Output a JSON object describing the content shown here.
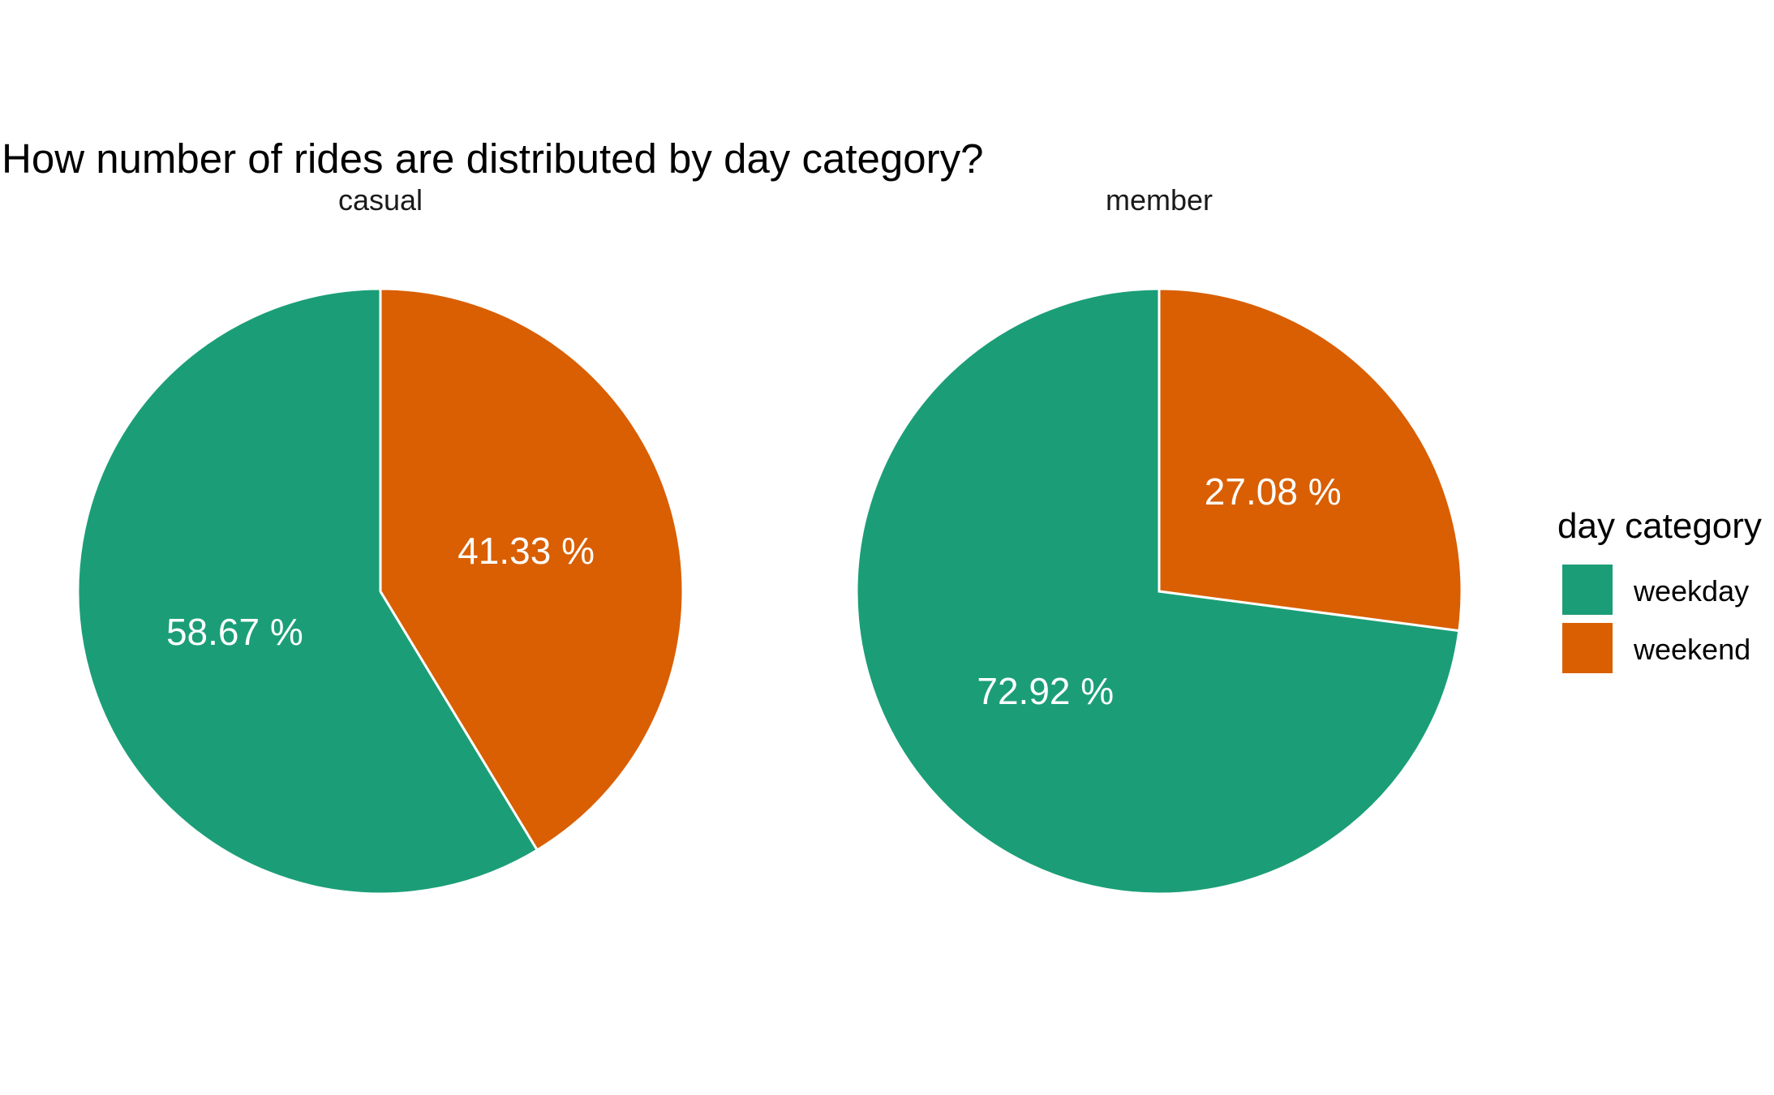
{
  "chart_data": {
    "type": "pie",
    "title": "How number of rides are distributed by day category?",
    "legend": {
      "title": "day category",
      "position": "right",
      "entries": [
        "weekday",
        "weekend"
      ]
    },
    "colors": {
      "weekday": "#1b9e77",
      "weekend": "#d95f02",
      "separator": "#ffffff"
    },
    "facets": [
      {
        "name": "casual",
        "slices": [
          {
            "category": "weekday",
            "value": 58.67,
            "label": "58.67 %"
          },
          {
            "category": "weekend",
            "value": 41.33,
            "label": "41.33 %"
          }
        ]
      },
      {
        "name": "member",
        "slices": [
          {
            "category": "weekday",
            "value": 72.92,
            "label": "72.92 %"
          },
          {
            "category": "weekend",
            "value": 27.08,
            "label": "27.08 %"
          }
        ]
      }
    ]
  }
}
